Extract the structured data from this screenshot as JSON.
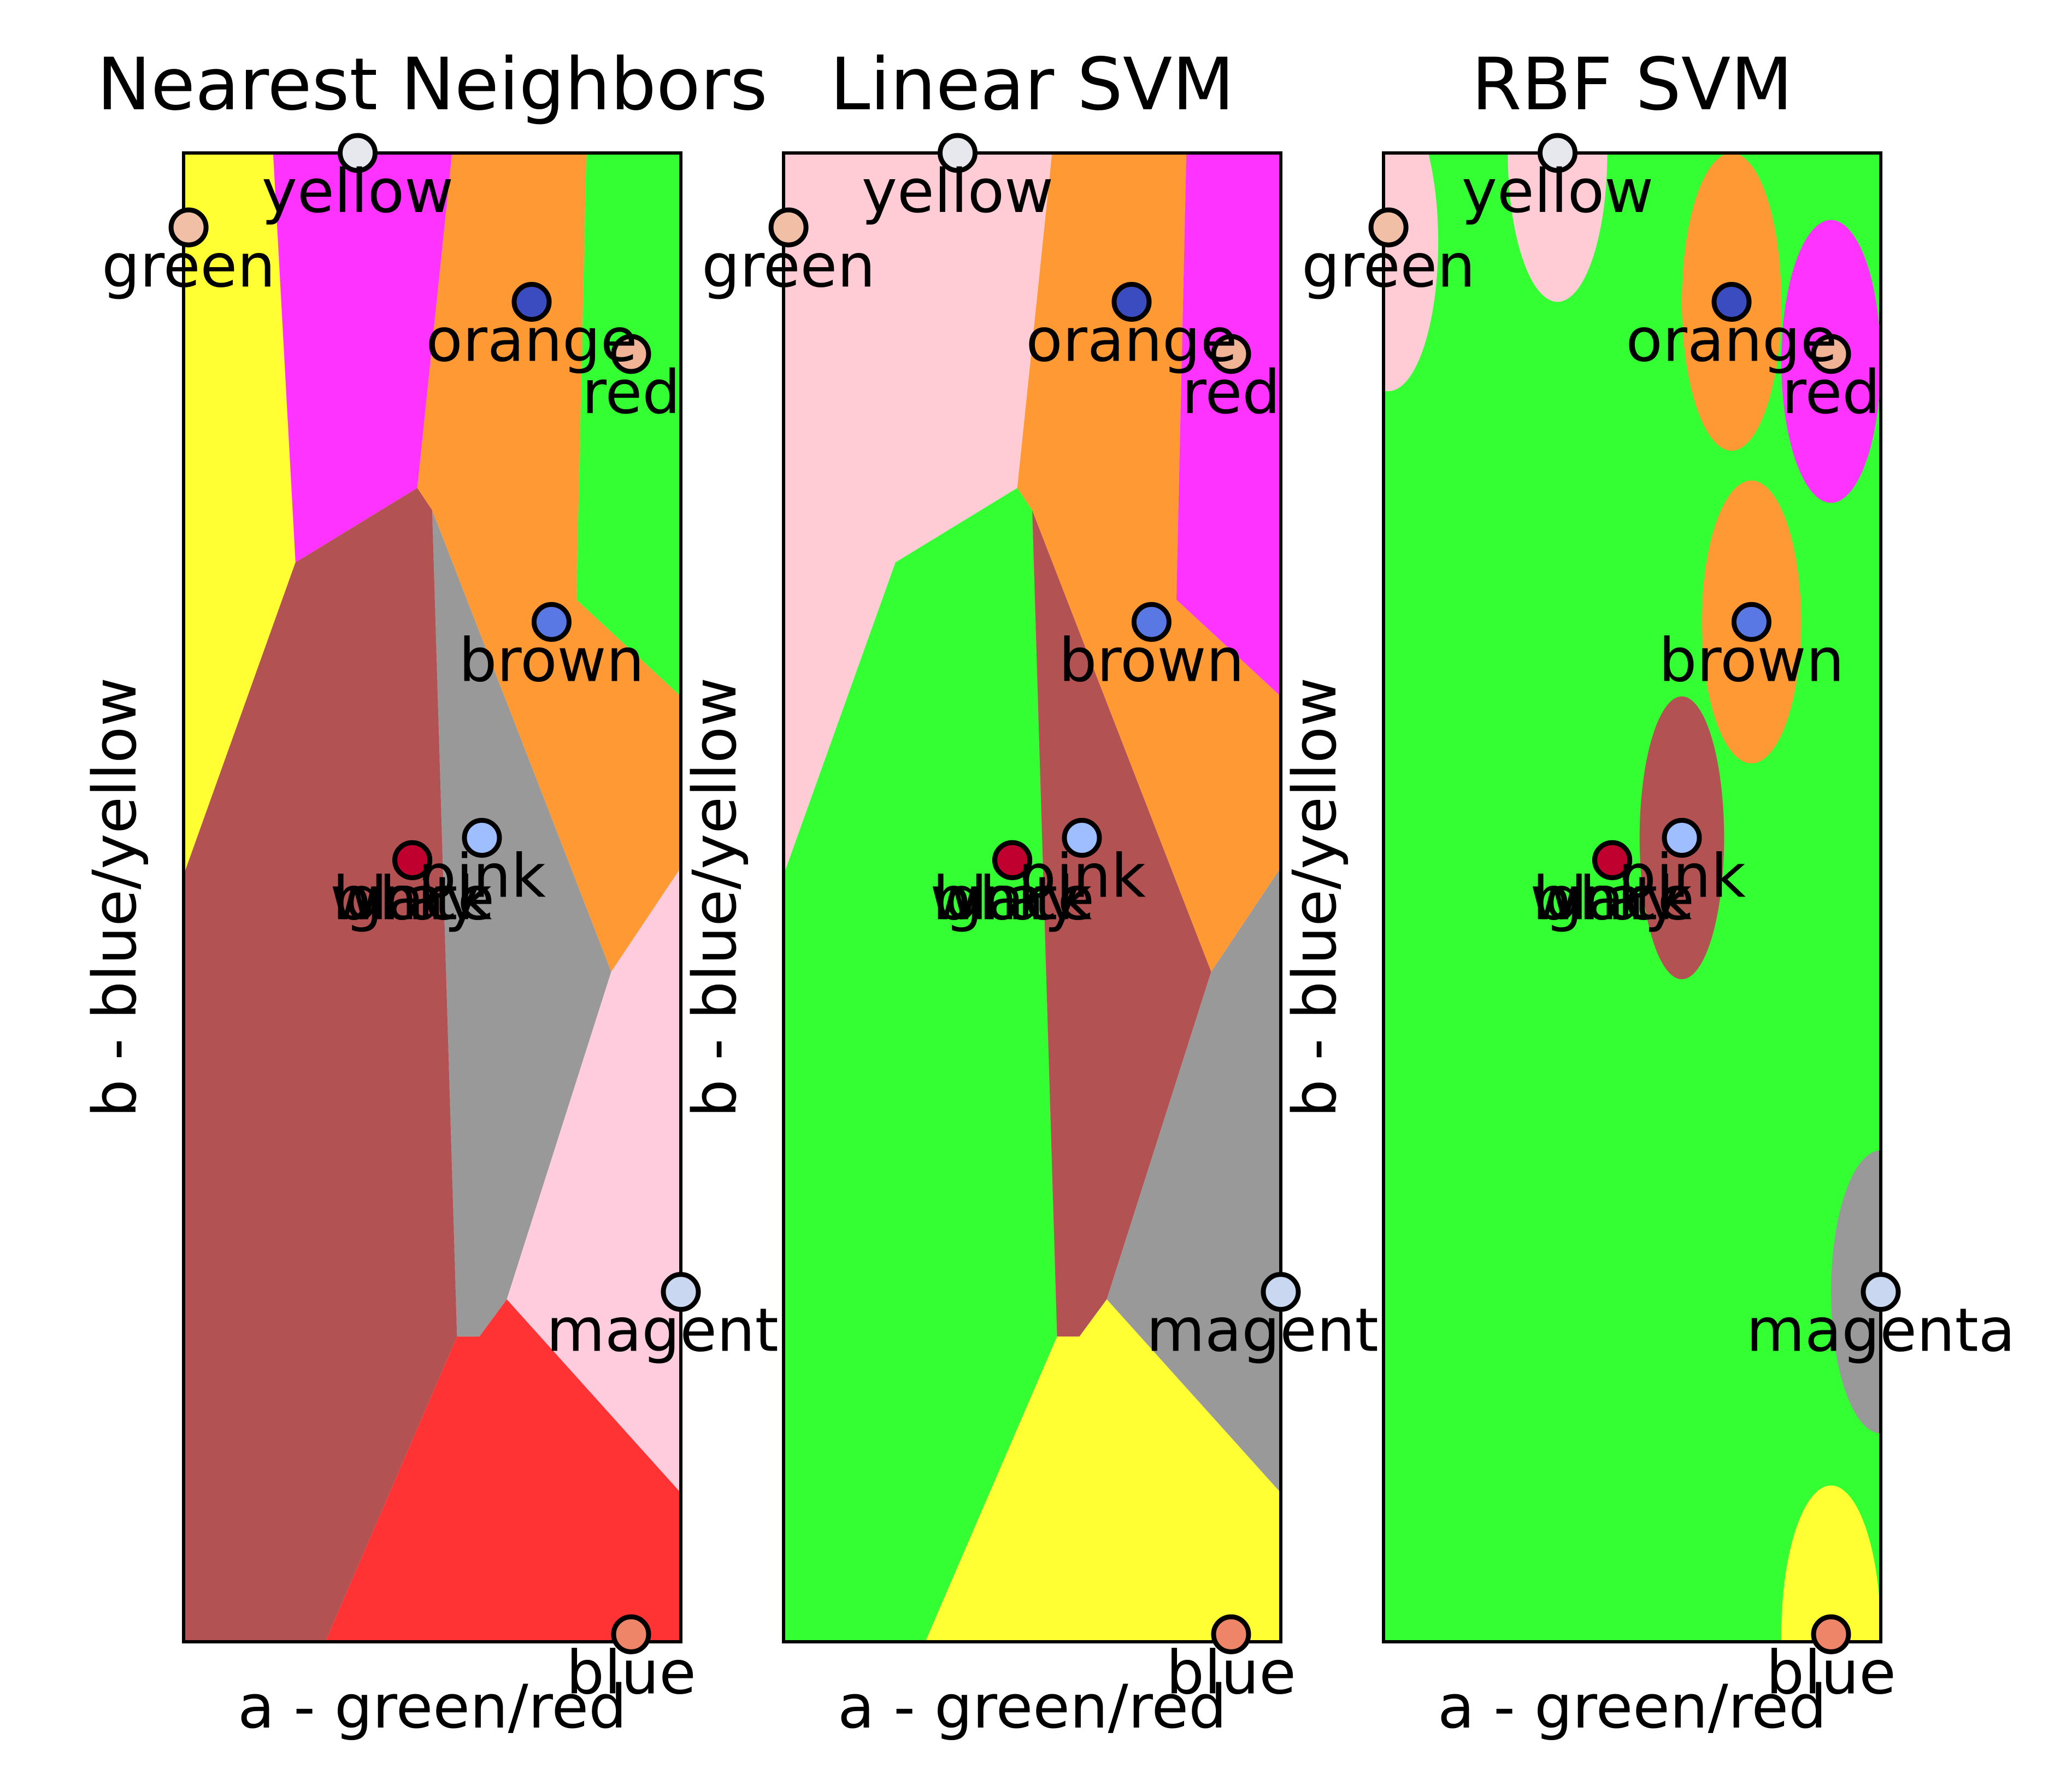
{
  "chart_data": [
    {
      "type": "scatter",
      "title": "Nearest Neighbors",
      "xlabel": "a - green/red",
      "ylabel": "b - blue/yellow",
      "xlim": [
        0,
        10
      ],
      "ylim": [
        0,
        10
      ],
      "points": [
        {
          "label": "yellow",
          "x": 3.5,
          "y": 10.0,
          "color": "#e6e8ee"
        },
        {
          "label": "green",
          "x": 0.1,
          "y": 9.5,
          "color": "#f0bfa6"
        },
        {
          "label": "orange",
          "x": 7.0,
          "y": 9.0,
          "color": "#3b4cc0"
        },
        {
          "label": "red",
          "x": 9.0,
          "y": 8.65,
          "color": "#f0b396"
        },
        {
          "label": "brown",
          "x": 7.4,
          "y": 6.85,
          "color": "#5a78e4"
        },
        {
          "label": "pink",
          "x": 6.0,
          "y": 5.4,
          "color": "#9ebeff"
        },
        {
          "label": "black",
          "x": 4.6,
          "y": 5.25,
          "color": "#c0002e"
        },
        {
          "label": "white",
          "x": 4.6,
          "y": 5.25,
          "color": "#c0002e"
        },
        {
          "label": "gray",
          "x": 4.6,
          "y": 5.25,
          "color": "#c0002e"
        },
        {
          "label": "magenta",
          "x": 10.0,
          "y": 2.35,
          "color": "#c9d8f0"
        },
        {
          "label": "blue",
          "x": 9.0,
          "y": 0.05,
          "color": "#ee8468"
        }
      ],
      "regions": [
        {
          "class": "yellow",
          "color": "#ffff33",
          "polygon": [
            [
              0,
              10
            ],
            [
              1.8,
              10
            ],
            [
              2.25,
              7.25
            ],
            [
              0,
              5.15
            ]
          ]
        },
        {
          "class": "pink",
          "color": "#ff33ff",
          "polygon": [
            [
              1.8,
              10
            ],
            [
              5.4,
              10
            ],
            [
              4.7,
              7.75
            ],
            [
              2.25,
              7.25
            ]
          ]
        },
        {
          "class": "orange",
          "color": "#ff9933",
          "polygon": [
            [
              5.4,
              10
            ],
            [
              8.1,
              10
            ],
            [
              7.9,
              7.0
            ],
            [
              10,
              6.35
            ],
            [
              10,
              5.2
            ],
            [
              8.6,
              4.5
            ],
            [
              5.0,
              7.6
            ],
            [
              4.7,
              7.75
            ]
          ]
        },
        {
          "class": "green",
          "color": "#33ff33",
          "polygon": [
            [
              8.1,
              10
            ],
            [
              10,
              10
            ],
            [
              10,
              6.35
            ],
            [
              7.9,
              7.0
            ]
          ]
        },
        {
          "class": "brown",
          "color": "#b25252",
          "polygon": [
            [
              0,
              5.15
            ],
            [
              2.25,
              7.25
            ],
            [
              4.7,
              7.75
            ],
            [
              5.0,
              7.6
            ],
            [
              5.5,
              2.05
            ],
            [
              2.85,
              0
            ],
            [
              0,
              0
            ]
          ]
        },
        {
          "class": "gray",
          "color": "#999999",
          "polygon": [
            [
              5.0,
              7.6
            ],
            [
              8.6,
              4.5
            ],
            [
              6.5,
              2.3
            ],
            [
              5.95,
              2.05
            ],
            [
              5.5,
              2.05
            ]
          ]
        },
        {
          "class": "pink",
          "color": "#ffccdd",
          "polygon": [
            [
              8.6,
              4.5
            ],
            [
              10,
              5.2
            ],
            [
              10,
              1.0
            ],
            [
              6.5,
              2.3
            ]
          ]
        },
        {
          "class": "red",
          "color": "#ff3333",
          "polygon": [
            [
              5.5,
              2.05
            ],
            [
              5.95,
              2.05
            ],
            [
              6.5,
              2.3
            ],
            [
              10,
              1.0
            ],
            [
              10,
              0
            ],
            [
              2.85,
              0
            ]
          ]
        }
      ]
    },
    {
      "type": "scatter",
      "title": "Linear SVM",
      "xlabel": "a - green/red",
      "ylabel": "b - blue/yellow",
      "xlim": [
        0,
        10
      ],
      "ylim": [
        0,
        10
      ],
      "points": [
        {
          "label": "yellow",
          "x": 3.5,
          "y": 10.0,
          "color": "#e6e8ee"
        },
        {
          "label": "green",
          "x": 0.1,
          "y": 9.5,
          "color": "#f0bfa6"
        },
        {
          "label": "orange",
          "x": 7.0,
          "y": 9.0,
          "color": "#3b4cc0"
        },
        {
          "label": "red",
          "x": 9.0,
          "y": 8.65,
          "color": "#f0b396"
        },
        {
          "label": "brown",
          "x": 7.4,
          "y": 6.85,
          "color": "#5a78e4"
        },
        {
          "label": "pink",
          "x": 6.0,
          "y": 5.4,
          "color": "#9ebeff"
        },
        {
          "label": "black",
          "x": 4.6,
          "y": 5.25,
          "color": "#c0002e"
        },
        {
          "label": "white",
          "x": 4.6,
          "y": 5.25,
          "color": "#c0002e"
        },
        {
          "label": "gray",
          "x": 4.6,
          "y": 5.25,
          "color": "#c0002e"
        },
        {
          "label": "magenta",
          "x": 10.0,
          "y": 2.35,
          "color": "#c9d8f0"
        },
        {
          "label": "blue",
          "x": 9.0,
          "y": 0.05,
          "color": "#ee8468"
        }
      ],
      "regions": [
        {
          "class": "pink",
          "color": "#ffccd6",
          "polygon": [
            [
              0,
              10
            ],
            [
              5.4,
              10
            ],
            [
              4.7,
              7.75
            ],
            [
              2.25,
              7.25
            ],
            [
              0,
              5.15
            ]
          ]
        },
        {
          "class": "orange",
          "color": "#ff9933",
          "polygon": [
            [
              5.4,
              10
            ],
            [
              8.1,
              10
            ],
            [
              7.9,
              7.0
            ],
            [
              10,
              6.35
            ],
            [
              10,
              5.2
            ],
            [
              8.6,
              4.5
            ],
            [
              5.0,
              7.6
            ],
            [
              4.7,
              7.75
            ]
          ]
        },
        {
          "class": "magenta",
          "color": "#ff33ff",
          "polygon": [
            [
              8.1,
              10
            ],
            [
              10,
              10
            ],
            [
              10,
              6.35
            ],
            [
              7.9,
              7.0
            ]
          ]
        },
        {
          "class": "green",
          "color": "#33ff33",
          "polygon": [
            [
              0,
              5.15
            ],
            [
              2.25,
              7.25
            ],
            [
              4.7,
              7.75
            ],
            [
              5.0,
              7.6
            ],
            [
              5.5,
              2.05
            ],
            [
              2.85,
              0
            ],
            [
              0,
              0
            ]
          ]
        },
        {
          "class": "brown",
          "color": "#b25252",
          "polygon": [
            [
              5.0,
              7.6
            ],
            [
              8.6,
              4.5
            ],
            [
              6.5,
              2.3
            ],
            [
              5.95,
              2.05
            ],
            [
              5.5,
              2.05
            ]
          ]
        },
        {
          "class": "gray",
          "color": "#999999",
          "polygon": [
            [
              8.6,
              4.5
            ],
            [
              10,
              5.2
            ],
            [
              10,
              1.0
            ],
            [
              6.5,
              2.3
            ]
          ]
        },
        {
          "class": "yellow",
          "color": "#ffff33",
          "polygon": [
            [
              5.5,
              2.05
            ],
            [
              5.95,
              2.05
            ],
            [
              6.5,
              2.3
            ],
            [
              10,
              1.0
            ],
            [
              10,
              0
            ],
            [
              2.85,
              0
            ]
          ]
        }
      ]
    },
    {
      "type": "scatter",
      "title": "RBF SVM",
      "xlabel": "a - green/red",
      "ylabel": "b - blue/yellow",
      "xlim": [
        0,
        10
      ],
      "ylim": [
        0,
        10
      ],
      "background_color": "#33ff33",
      "points": [
        {
          "label": "yellow",
          "x": 3.5,
          "y": 10.0,
          "color": "#e6e8ee"
        },
        {
          "label": "green",
          "x": 0.1,
          "y": 9.5,
          "color": "#f0bfa6"
        },
        {
          "label": "orange",
          "x": 7.0,
          "y": 9.0,
          "color": "#3b4cc0"
        },
        {
          "label": "red",
          "x": 9.0,
          "y": 8.65,
          "color": "#f0b396"
        },
        {
          "label": "brown",
          "x": 7.4,
          "y": 6.85,
          "color": "#5a78e4"
        },
        {
          "label": "pink",
          "x": 6.0,
          "y": 5.4,
          "color": "#9ebeff"
        },
        {
          "label": "black",
          "x": 4.6,
          "y": 5.25,
          "color": "#c0002e"
        },
        {
          "label": "white",
          "x": 4.6,
          "y": 5.25,
          "color": "#c0002e"
        },
        {
          "label": "gray",
          "x": 4.6,
          "y": 5.25,
          "color": "#c0002e"
        },
        {
          "label": "magenta",
          "x": 10.0,
          "y": 2.35,
          "color": "#c9d8f0"
        },
        {
          "label": "blue",
          "x": 9.0,
          "y": 0.05,
          "color": "#ee8468"
        }
      ],
      "regions": [
        {
          "class": "pink",
          "color": "#ffccd6",
          "ellipse": {
            "cx": 0.1,
            "cy": 9.4,
            "rx": 1.0,
            "ry": 1.0
          }
        },
        {
          "class": "pink",
          "color": "#ffccd6",
          "ellipse": {
            "cx": 3.5,
            "cy": 10.0,
            "rx": 1.0,
            "ry": 1.0
          }
        },
        {
          "class": "orange",
          "color": "#ff9933",
          "ellipse": {
            "cx": 7.0,
            "cy": 9.0,
            "rx": 1.0,
            "ry": 1.0
          }
        },
        {
          "class": "magenta",
          "color": "#ff33ff",
          "ellipse": {
            "cx": 9.0,
            "cy": 8.6,
            "rx": 1.0,
            "ry": 0.95
          }
        },
        {
          "class": "orange",
          "color": "#ff9933",
          "ellipse": {
            "cx": 7.4,
            "cy": 6.85,
            "rx": 1.0,
            "ry": 0.95
          }
        },
        {
          "class": "brown",
          "color": "#b25252",
          "ellipse": {
            "cx": 6.0,
            "cy": 5.4,
            "rx": 0.85,
            "ry": 0.95
          }
        },
        {
          "class": "gray",
          "color": "#999999",
          "ellipse": {
            "cx": 10.0,
            "cy": 2.35,
            "rx": 1.0,
            "ry": 0.95
          }
        },
        {
          "class": "yellow",
          "color": "#ffff33",
          "ellipse": {
            "cx": 9.0,
            "cy": 0.05,
            "rx": 1.0,
            "ry": 1.0
          }
        }
      ]
    }
  ]
}
